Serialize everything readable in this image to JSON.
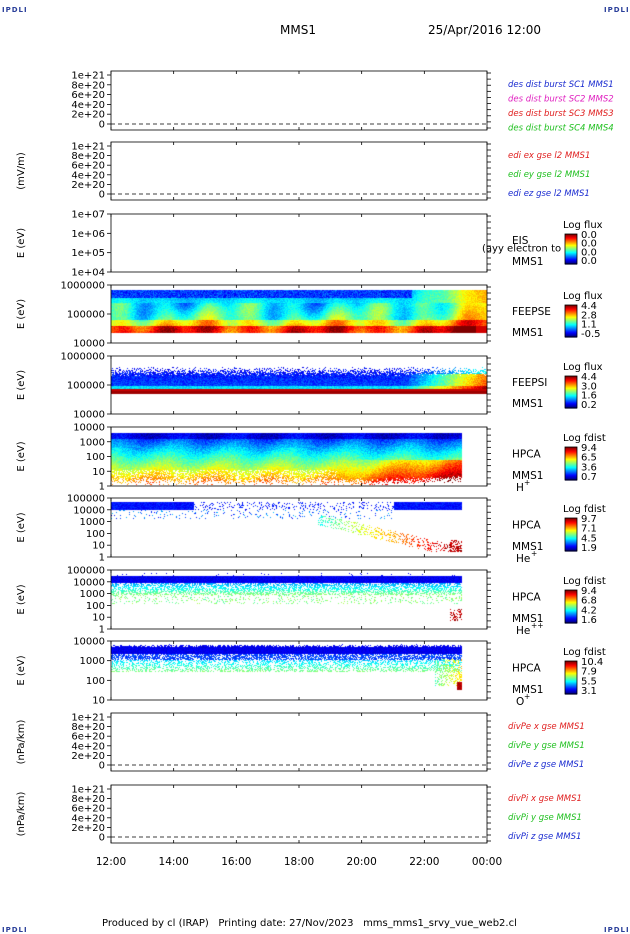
{
  "header": {
    "mission": "MMS1",
    "datetime": "25/Apr/2016 12:00",
    "corner_label": "IPDLI"
  },
  "footer": {
    "produced_by": "Produced by cl (IRAP)",
    "printing_date": "Printing date: 27/Nov/2023",
    "script": "mms_mms1_srvy_vue_web2.cl"
  },
  "chart_data": {
    "type": "heatmap",
    "x_ticks": [
      "12:00",
      "14:00",
      "16:00",
      "18:00",
      "20:00",
      "22:00",
      "00:00"
    ],
    "x_range_hours": [
      12,
      24
    ],
    "panels": [
      {
        "kind": "line",
        "ylabel": "",
        "y_ticks": [
          "1e+21",
          "8e+20",
          "6e+20",
          "4e+20",
          "2e+20",
          "0"
        ],
        "legend": [
          {
            "text": "des dist burst SC1 MMS1",
            "color": "#1a2bd0"
          },
          {
            "text": "des dist burst SC2 MMS2",
            "color": "#e020c0"
          },
          {
            "text": "des dist burst SC3 MMS3",
            "color": "#e02020"
          },
          {
            "text": "des dist burst SC4 MMS4",
            "color": "#20c020"
          }
        ]
      },
      {
        "kind": "line",
        "ylabel": "(mV/m)",
        "y_ticks": [
          "1e+21",
          "8e+20",
          "6e+20",
          "4e+20",
          "2e+20",
          "0"
        ],
        "legend": [
          {
            "text": "edi ex gse l2 MMS1",
            "color": "#e02020"
          },
          {
            "text": "edi ey gse l2 MMS1",
            "color": "#20c020"
          },
          {
            "text": "edi ez gse l2 MMS1",
            "color": "#1a2bd0"
          }
        ]
      },
      {
        "kind": "spec",
        "ylabel": "E (eV)",
        "y_ticks": [
          "1e+07",
          "1e+06",
          "1e+05",
          "1e+04"
        ],
        "instrument": "EIS",
        "instrument_note": "(ayy electron to",
        "species": "",
        "sc": "MMS1",
        "cb_title": "Log flux",
        "cb_values": [
          "0.0",
          "0.0",
          "0.0",
          "0.0"
        ],
        "data_mode": "empty"
      },
      {
        "kind": "spec",
        "ylabel": "E (eV)",
        "y_ticks": [
          "1000000",
          "100000",
          "10000"
        ],
        "instrument": "FEEPSE",
        "species": "",
        "sc": "MMS1",
        "cb_title": "Log flux",
        "cb_values": [
          "4.4",
          "2.8",
          "1.1",
          "-0.5"
        ],
        "data_mode": "feepse"
      },
      {
        "kind": "spec",
        "ylabel": "E (eV)",
        "y_ticks": [
          "1000000",
          "100000",
          "10000"
        ],
        "instrument": "FEEPSI",
        "species": "",
        "sc": "MMS1",
        "cb_title": "Log flux",
        "cb_values": [
          "4.4",
          "3.0",
          "1.6",
          "0.2"
        ],
        "data_mode": "feepsi"
      },
      {
        "kind": "spec",
        "ylabel": "E (eV)",
        "y_ticks": [
          "10000",
          "1000",
          "100",
          "10",
          "1"
        ],
        "instrument": "HPCA",
        "species": "H",
        "species_sup": "+",
        "sc": "MMS1",
        "cb_title": "Log fdist",
        "cb_values": [
          "9.4",
          "6.5",
          "3.6",
          "0.7"
        ],
        "data_mode": "hplus"
      },
      {
        "kind": "spec",
        "ylabel": "E (eV)",
        "y_ticks": [
          "100000",
          "10000",
          "1000",
          "100",
          "10",
          "1"
        ],
        "instrument": "HPCA",
        "species": "He",
        "species_sup": "+",
        "sc": "MMS1",
        "cb_title": "Log fdist",
        "cb_values": [
          "9.7",
          "7.1",
          "4.5",
          "1.9"
        ],
        "data_mode": "heplus"
      },
      {
        "kind": "spec",
        "ylabel": "E (eV)",
        "y_ticks": [
          "100000",
          "10000",
          "1000",
          "100",
          "10",
          "1"
        ],
        "instrument": "HPCA",
        "species": "He",
        "species_sup": "++",
        "sc": "MMS1",
        "cb_title": "Log fdist",
        "cb_values": [
          "9.4",
          "6.8",
          "4.2",
          "1.6"
        ],
        "data_mode": "heplusplus"
      },
      {
        "kind": "spec",
        "ylabel": "E (eV)",
        "y_ticks": [
          "10000",
          "1000",
          "100",
          "10"
        ],
        "instrument": "HPCA",
        "species": "O",
        "species_sup": "+",
        "sc": "MMS1",
        "cb_title": "Log fdist",
        "cb_values": [
          "10.4",
          "7.9",
          "5.5",
          "3.1"
        ],
        "data_mode": "oplus"
      },
      {
        "kind": "line",
        "ylabel": "(nPa/km)",
        "y_ticks": [
          "1e+21",
          "8e+20",
          "6e+20",
          "4e+20",
          "2e+20",
          "0"
        ],
        "legend": [
          {
            "text": "divPe x gse MMS1",
            "color": "#e02020"
          },
          {
            "text": "divPe y gse MMS1",
            "color": "#20c020"
          },
          {
            "text": "divPe z gse MMS1",
            "color": "#1a2bd0"
          }
        ]
      },
      {
        "kind": "line",
        "ylabel": "(nPa/km)",
        "y_ticks": [
          "1e+21",
          "8e+20",
          "6e+20",
          "4e+20",
          "2e+20",
          "0"
        ],
        "legend": [
          {
            "text": "divPi x gse MMS1",
            "color": "#e02020"
          },
          {
            "text": "divPi y gse MMS1",
            "color": "#20c020"
          },
          {
            "text": "divPi z gse MMS1",
            "color": "#1a2bd0"
          }
        ]
      }
    ]
  }
}
